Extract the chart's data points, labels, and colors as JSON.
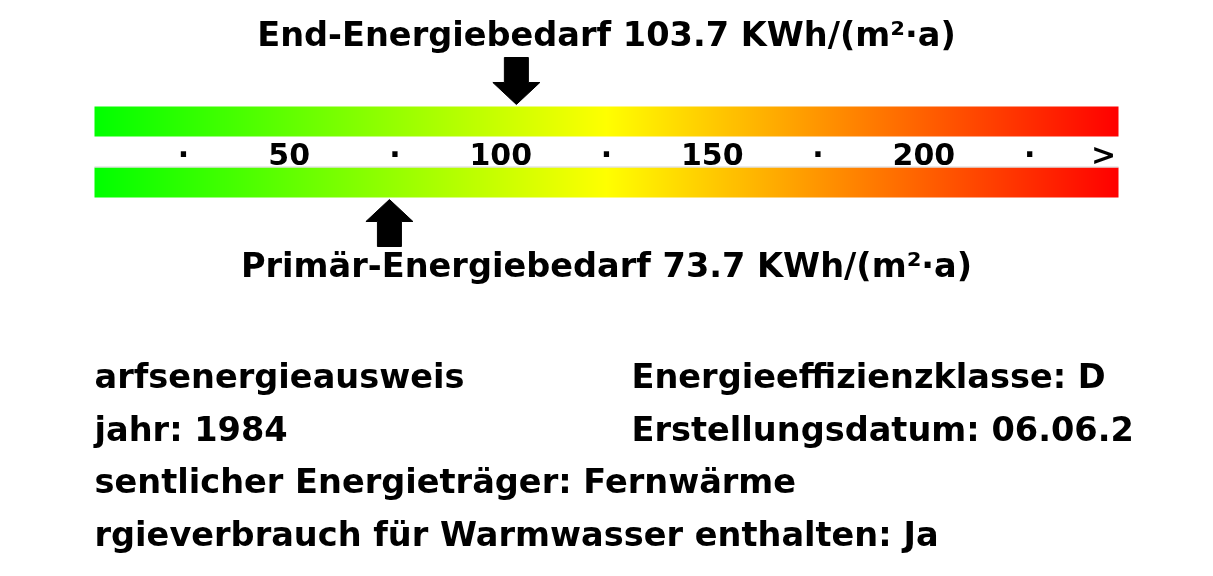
{
  "chart_data": {
    "type": "scatter",
    "orientation": "horizontal",
    "xlim": [
      4,
      246
    ],
    "xticks": [
      {
        "value": 25,
        "label": "·"
      },
      50,
      {
        "value": 75,
        "label": "·"
      },
      100,
      {
        "value": 125,
        "label": "·"
      },
      150,
      {
        "value": 175,
        "label": "·"
      },
      200,
      {
        "value": 225,
        "label": "·"
      },
      {
        "value": 242.5,
        "label": ">"
      }
    ],
    "bands": [
      {
        "axis": "x",
        "from": 4,
        "to": 246
      },
      {
        "axis": "x",
        "from": 4,
        "to": 246
      }
    ],
    "categories": [
      "End-Energiebedarf 103.7 KWh/(m²·a)",
      "Primär-Energiebedarf 73.7 KWh/(m²·a)"
    ],
    "values": [
      103.7,
      73.7
    ],
    "colors": [
      "#000000",
      "#000000"
    ],
    "annotations": [
      "arfsenergieausweis",
      "Energieeffizienzklasse: D",
      "jahr: 1984",
      "Erstellungsdatum: 06.06.2",
      "sentlicher Energieträger: Fernwärme",
      "rgieverbrauch für Warmwasser enthalten: Ja"
    ]
  }
}
